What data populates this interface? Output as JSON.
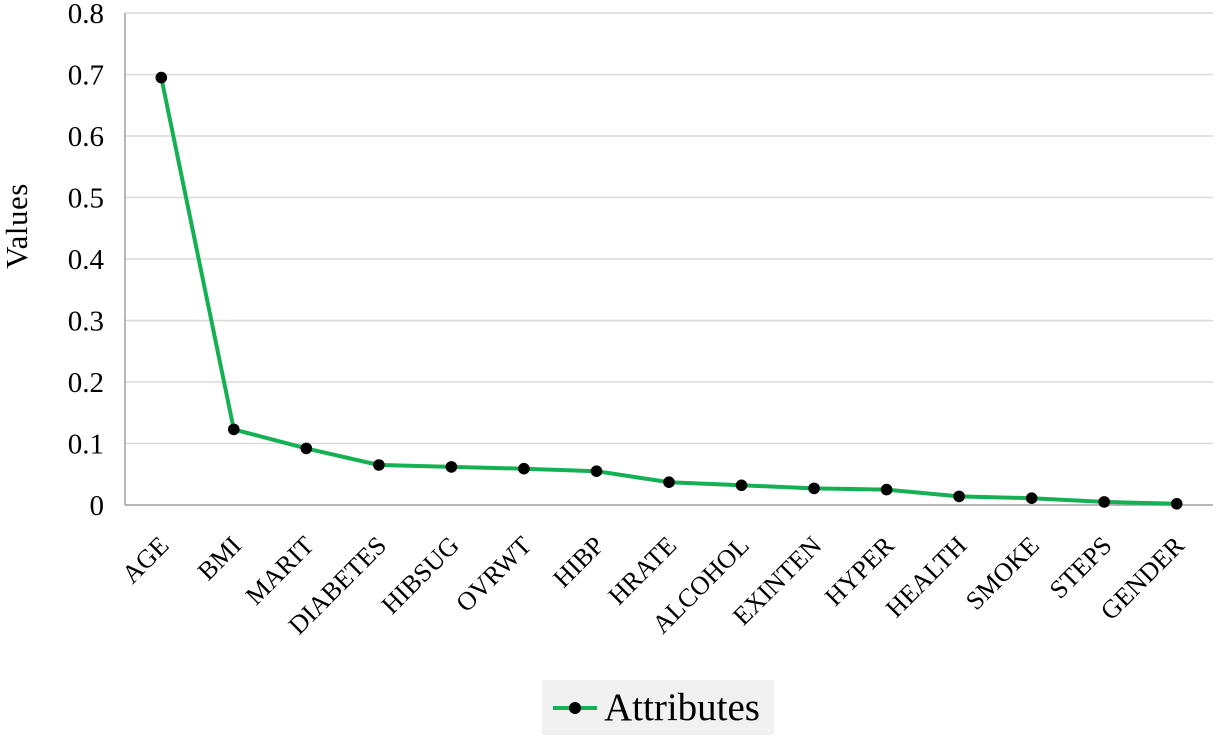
{
  "figure": {
    "background": "#ffffff"
  },
  "chart_data": {
    "type": "line",
    "title": "",
    "xlabel": "",
    "ylabel": "Values",
    "categories": [
      "AGE",
      "BMI",
      "MARIT",
      "DIABETES",
      "HIBSUG",
      "OVRWT",
      "HIBP",
      "HRATE",
      "ALCOHOL",
      "EXINTEN",
      "HYPER",
      "HEALTH",
      "SMOKE",
      "STEPS",
      "GENDER"
    ],
    "series": [
      {
        "name": "Attributes",
        "values": [
          0.695,
          0.123,
          0.092,
          0.065,
          0.062,
          0.059,
          0.055,
          0.037,
          0.032,
          0.027,
          0.025,
          0.014,
          0.011,
          0.005,
          0.002
        ]
      }
    ],
    "ylim": [
      0,
      0.8
    ],
    "yticks": [
      "0",
      "0.1",
      "0.2",
      "0.3",
      "0.4",
      "0.5",
      "0.6",
      "0.7",
      "0.8"
    ],
    "grid": "horizontal-only",
    "x_label_rotation_deg": -45,
    "legend": {
      "label": "Attributes",
      "position": "bottom-center"
    },
    "colors": {
      "line": "#14b053",
      "marker": "#000000",
      "grid": "#d9d9d9",
      "axis": "#ababab",
      "text": "#000000",
      "legend_bg": "#f1f1f1"
    }
  }
}
